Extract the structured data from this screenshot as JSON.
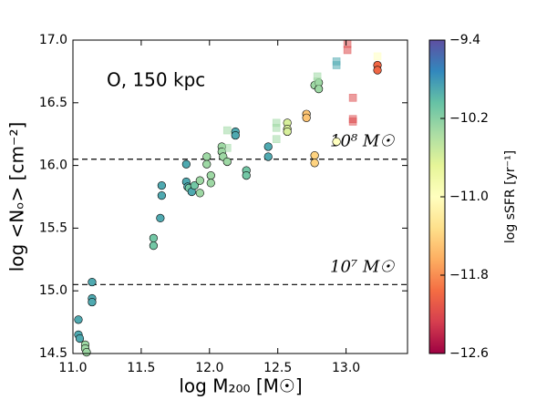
{
  "chart_data": {
    "type": "scatter",
    "annotation": "O, 150 kpc",
    "xlabel": "log M₂₀₀ [M☉]",
    "ylabel": "log <Nₒ> [cm⁻²]",
    "colorbar_label": "log sSFR [yr⁻¹]",
    "xlim": [
      11.0,
      13.45
    ],
    "xticks": [
      {
        "value": 11.0,
        "label": "11.0"
      },
      {
        "value": 11.5,
        "label": "11.5"
      },
      {
        "value": 12.0,
        "label": "12.0"
      },
      {
        "value": 12.5,
        "label": "12.5"
      },
      {
        "value": 13.0,
        "label": "13.0"
      }
    ],
    "ylim": [
      14.5,
      17.0
    ],
    "yticks": [
      {
        "value": 14.5,
        "label": "14.5"
      },
      {
        "value": 15.0,
        "label": "15.0"
      },
      {
        "value": 15.5,
        "label": "15.5"
      },
      {
        "value": 16.0,
        "label": "16.0"
      },
      {
        "value": 16.5,
        "label": "16.5"
      },
      {
        "value": 17.0,
        "label": "17.0"
      }
    ],
    "clim": [
      -12.6,
      -9.4
    ],
    "cticks": [
      {
        "value": -9.4,
        "label": "−9.4"
      },
      {
        "value": -10.2,
        "label": "−10.2"
      },
      {
        "value": -11.0,
        "label": "−11.0"
      },
      {
        "value": -11.8,
        "label": "−11.8"
      },
      {
        "value": -12.6,
        "label": "−12.6"
      }
    ],
    "colormap": [
      "#9e0142",
      "#d53e4f",
      "#f46d43",
      "#fdae61",
      "#fee08b",
      "#ffffbf",
      "#e6f598",
      "#abdda4",
      "#66c2a5",
      "#3288bd",
      "#5e4fa2"
    ],
    "hlines": [
      {
        "value": 16.05,
        "label": "10⁸ M☉"
      },
      {
        "value": 15.05,
        "label": "10⁷ M☉"
      }
    ],
    "series": [
      {
        "marker": "circle",
        "x": [
          11.04,
          11.04,
          11.05,
          11.09,
          11.09,
          11.1,
          11.14,
          11.14,
          11.14,
          11.59,
          11.59,
          11.64,
          11.65,
          11.65,
          11.83,
          11.83,
          11.84,
          11.85,
          11.87,
          11.89,
          11.93,
          11.93,
          11.98,
          11.98,
          12.01,
          12.01,
          12.09,
          12.09,
          12.1,
          12.13,
          12.19,
          12.19,
          12.27,
          12.27,
          12.43,
          12.43,
          12.57,
          12.57,
          12.57,
          12.71,
          12.71,
          12.77,
          12.8,
          12.8,
          12.77,
          12.77,
          12.93,
          13.23,
          13.23
        ],
        "values": [
          14.77,
          14.65,
          14.62,
          14.57,
          14.54,
          14.51,
          15.07,
          14.94,
          14.91,
          15.42,
          15.36,
          15.58,
          15.84,
          15.76,
          16.01,
          15.87,
          15.83,
          15.82,
          15.79,
          15.84,
          15.88,
          15.78,
          16.07,
          16.01,
          15.92,
          15.86,
          16.15,
          16.11,
          16.07,
          16.03,
          16.27,
          16.24,
          15.96,
          15.92,
          16.15,
          16.07,
          16.34,
          16.29,
          16.27,
          16.41,
          16.38,
          16.64,
          16.66,
          16.61,
          16.08,
          16.02,
          16.19,
          16.8,
          16.76
        ],
        "c": [
          -9.9,
          -9.9,
          -9.9,
          -10.3,
          -10.3,
          -10.3,
          -9.9,
          -9.9,
          -9.9,
          -10.1,
          -10.1,
          -9.9,
          -9.9,
          -9.9,
          -9.9,
          -9.9,
          -9.9,
          -10.1,
          -9.9,
          -10.1,
          -10.3,
          -10.3,
          -10.3,
          -10.3,
          -10.3,
          -10.3,
          -10.3,
          -10.3,
          -10.3,
          -10.3,
          -9.9,
          -9.9,
          -10.1,
          -10.1,
          -9.9,
          -9.9,
          -10.6,
          -10.6,
          -10.6,
          -11.5,
          -11.5,
          -10.3,
          -10.3,
          -10.3,
          -11.4,
          -11.4,
          -11.0,
          -12.0,
          -12.0
        ]
      },
      {
        "marker": "square",
        "x": [
          12.13,
          12.13,
          12.49,
          12.49,
          12.49,
          12.79,
          12.79,
          12.93,
          12.93,
          13.01,
          13.01,
          13.05,
          13.05,
          13.05,
          13.23
        ],
        "values": [
          16.28,
          16.14,
          16.34,
          16.3,
          16.21,
          16.71,
          16.67,
          16.83,
          16.8,
          16.97,
          16.92,
          16.54,
          16.37,
          16.35,
          16.87
        ],
        "c": [
          -10.3,
          -10.3,
          -10.3,
          -10.3,
          -10.3,
          -10.3,
          -10.3,
          -9.9,
          -9.9,
          -12.2,
          -12.2,
          -12.2,
          -12.2,
          -12.2,
          -11.0
        ]
      }
    ]
  }
}
